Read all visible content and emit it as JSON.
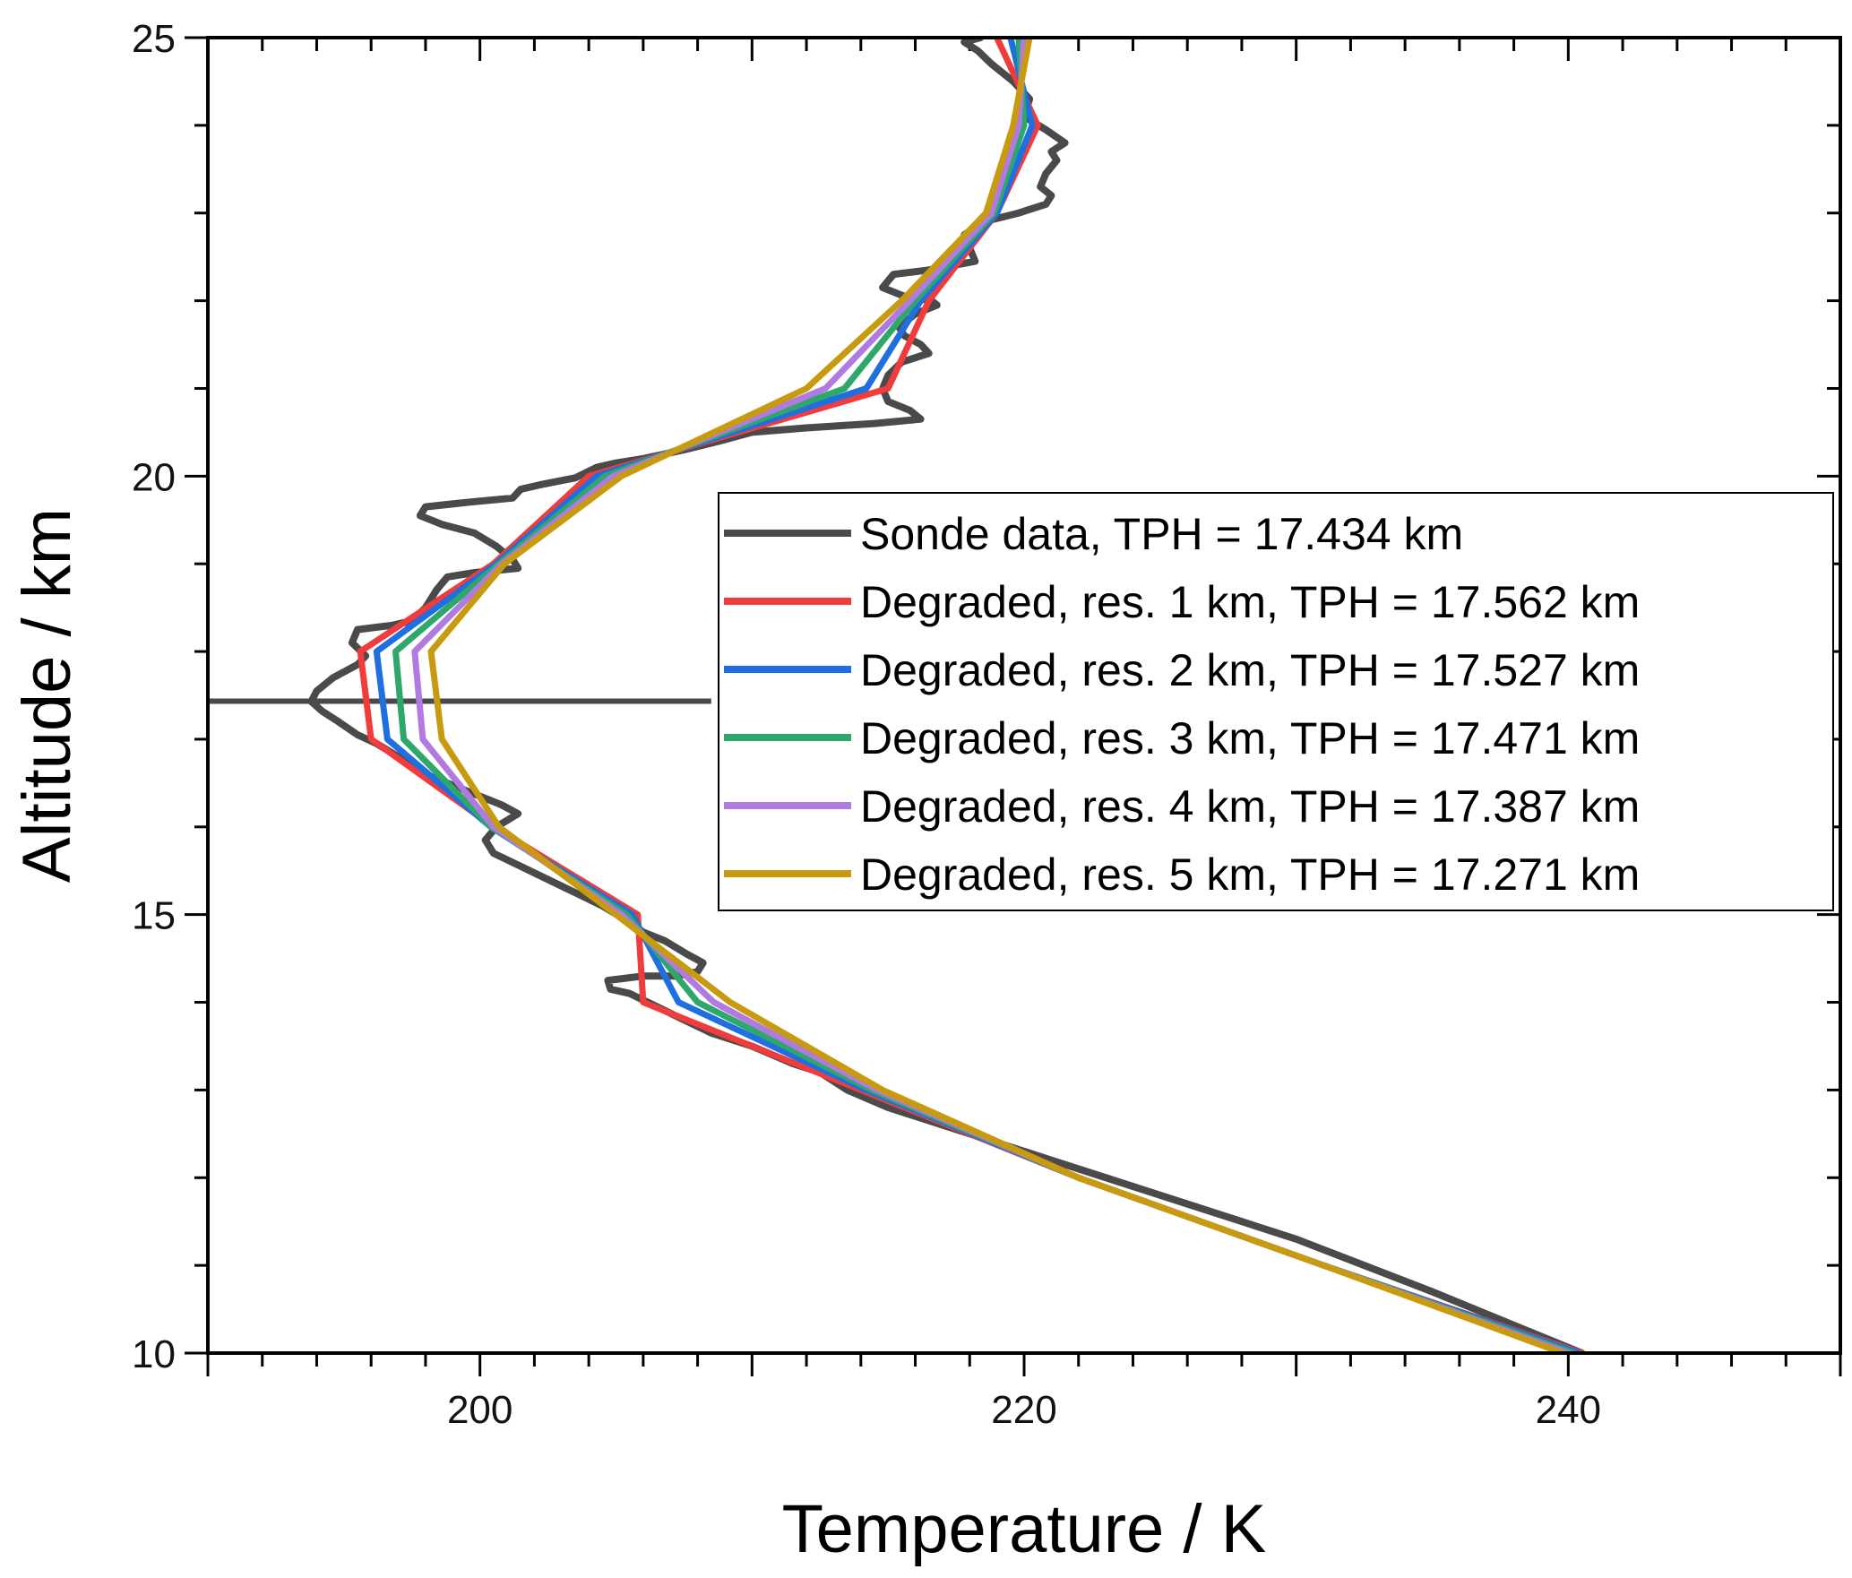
{
  "chart_data": {
    "type": "line",
    "xlabel": "Temperature / K",
    "ylabel": "Altitude / km",
    "xlim": [
      190,
      250
    ],
    "ylim": [
      10,
      25
    ],
    "xticks": [
      200,
      220,
      240
    ],
    "yticks": [
      10,
      15,
      20,
      25
    ],
    "grid": false,
    "legend_position": "right",
    "colors": {
      "sonde": "#4a4a4a",
      "res1": "#f03c3c",
      "res2": "#1f6fe0",
      "res3": "#2ea86a",
      "res4": "#b07ae0",
      "res5": "#c89a10"
    },
    "tropopause_line": {
      "y": 17.434,
      "x_range": [
        190,
        208.5
      ]
    },
    "series": [
      {
        "key": "sonde",
        "name": "Sonde data, TPH = 17.434 km",
        "color": "#4a4a4a",
        "points": [
          [
            240.5,
            10
          ],
          [
            235,
            10.7
          ],
          [
            230,
            11.3
          ],
          [
            225,
            11.8
          ],
          [
            221,
            12.2
          ],
          [
            218,
            12.5
          ],
          [
            215,
            12.8
          ],
          [
            213.5,
            13.0
          ],
          [
            212.5,
            13.2
          ],
          [
            211.5,
            13.3
          ],
          [
            210,
            13.5
          ],
          [
            208.5,
            13.65
          ],
          [
            207.5,
            13.8
          ],
          [
            206.5,
            13.95
          ],
          [
            205.5,
            14.1
          ],
          [
            204.8,
            14.15
          ],
          [
            204.7,
            14.25
          ],
          [
            206.0,
            14.3
          ],
          [
            207.2,
            14.3
          ],
          [
            208.0,
            14.35
          ],
          [
            208.2,
            14.45
          ],
          [
            207.6,
            14.55
          ],
          [
            206.8,
            14.7
          ],
          [
            206.0,
            14.8
          ],
          [
            205.3,
            14.95
          ],
          [
            204.5,
            15.1
          ],
          [
            203.5,
            15.25
          ],
          [
            202.5,
            15.4
          ],
          [
            201.5,
            15.55
          ],
          [
            200.5,
            15.7
          ],
          [
            200.2,
            15.85
          ],
          [
            200.6,
            16.0
          ],
          [
            201.4,
            16.15
          ],
          [
            200.8,
            16.25
          ],
          [
            199.2,
            16.45
          ],
          [
            198.0,
            16.6
          ],
          [
            197.0,
            16.8
          ],
          [
            196.2,
            16.95
          ],
          [
            195.5,
            17.05
          ],
          [
            194.8,
            17.2
          ],
          [
            194.2,
            17.32
          ],
          [
            193.8,
            17.43
          ],
          [
            194.0,
            17.55
          ],
          [
            194.6,
            17.7
          ],
          [
            195.5,
            17.85
          ],
          [
            195.8,
            17.95
          ],
          [
            195.3,
            18.1
          ],
          [
            195.5,
            18.25
          ],
          [
            196.8,
            18.3
          ],
          [
            197.5,
            18.35
          ],
          [
            198.0,
            18.5
          ],
          [
            198.4,
            18.7
          ],
          [
            198.8,
            18.85
          ],
          [
            199.8,
            18.9
          ],
          [
            201.4,
            18.95
          ],
          [
            201.2,
            19.05
          ],
          [
            200.6,
            19.2
          ],
          [
            199.8,
            19.35
          ],
          [
            198.6,
            19.45
          ],
          [
            197.8,
            19.55
          ],
          [
            198.0,
            19.65
          ],
          [
            199.5,
            19.7
          ],
          [
            201.2,
            19.75
          ],
          [
            201.5,
            19.85
          ],
          [
            202.2,
            19.9
          ],
          [
            203.5,
            19.98
          ],
          [
            204.3,
            20.1
          ],
          [
            205.0,
            20.15
          ],
          [
            206.0,
            20.2
          ],
          [
            207.5,
            20.3
          ],
          [
            208.8,
            20.4
          ],
          [
            210.0,
            20.5
          ],
          [
            212.0,
            20.55
          ],
          [
            214.5,
            20.6
          ],
          [
            216.2,
            20.65
          ],
          [
            215.8,
            20.75
          ],
          [
            215.0,
            20.85
          ],
          [
            214.8,
            21.0
          ],
          [
            215.0,
            21.15
          ],
          [
            215.5,
            21.3
          ],
          [
            216.5,
            21.4
          ],
          [
            216.2,
            21.5
          ],
          [
            215.6,
            21.6
          ],
          [
            215.4,
            21.7
          ],
          [
            216.0,
            21.85
          ],
          [
            216.8,
            21.95
          ],
          [
            216.6,
            22.0
          ],
          [
            215.6,
            22.05
          ],
          [
            214.8,
            22.15
          ],
          [
            215.2,
            22.3
          ],
          [
            216.5,
            22.35
          ],
          [
            218.2,
            22.45
          ],
          [
            218.0,
            22.6
          ],
          [
            217.8,
            22.75
          ],
          [
            218.5,
            22.9
          ],
          [
            219.8,
            23.0
          ],
          [
            220.8,
            23.1
          ],
          [
            221.0,
            23.2
          ],
          [
            220.6,
            23.3
          ],
          [
            220.8,
            23.45
          ],
          [
            221.2,
            23.6
          ],
          [
            221.0,
            23.7
          ],
          [
            221.5,
            23.8
          ],
          [
            220.8,
            23.95
          ],
          [
            220.0,
            24.1
          ],
          [
            220.2,
            24.3
          ],
          [
            219.6,
            24.5
          ],
          [
            218.8,
            24.7
          ],
          [
            218.3,
            24.85
          ],
          [
            217.8,
            24.95
          ],
          [
            218.4,
            25.0
          ]
        ]
      },
      {
        "key": "res1",
        "name": "Degraded, res. 1 km, TPH = 17.562 km",
        "color": "#f03c3c",
        "points": [
          [
            240.5,
            10
          ],
          [
            231,
            11
          ],
          [
            222,
            12
          ],
          [
            214,
            13
          ],
          [
            206,
            14
          ],
          [
            205.8,
            15
          ],
          [
            200.5,
            16
          ],
          [
            196,
            17
          ],
          [
            195.6,
            18
          ],
          [
            200.5,
            19
          ],
          [
            204,
            20
          ],
          [
            215,
            21
          ],
          [
            216.5,
            22
          ],
          [
            219,
            23
          ],
          [
            220.5,
            24
          ],
          [
            219,
            25
          ]
        ]
      },
      {
        "key": "res2",
        "name": "Degraded, res. 2 km, TPH = 17.527 km",
        "color": "#1f6fe0",
        "points": [
          [
            240.4,
            10
          ],
          [
            231,
            11
          ],
          [
            222,
            12
          ],
          [
            214.2,
            13
          ],
          [
            207.3,
            14
          ],
          [
            205.6,
            15
          ],
          [
            200.4,
            16
          ],
          [
            196.6,
            17
          ],
          [
            196.2,
            18
          ],
          [
            200.6,
            19
          ],
          [
            204.3,
            20
          ],
          [
            214.2,
            21
          ],
          [
            216.2,
            22
          ],
          [
            219,
            23
          ],
          [
            220.3,
            24
          ],
          [
            219.5,
            25
          ]
        ]
      },
      {
        "key": "res3",
        "name": "Degraded, res. 3 km, TPH = 17.471 km",
        "color": "#2ea86a",
        "points": [
          [
            240.2,
            10
          ],
          [
            231,
            11
          ],
          [
            222,
            12
          ],
          [
            214.4,
            13
          ],
          [
            208,
            14
          ],
          [
            205.4,
            15
          ],
          [
            200.4,
            16
          ],
          [
            197.2,
            17
          ],
          [
            196.9,
            18
          ],
          [
            200.7,
            19
          ],
          [
            204.6,
            20
          ],
          [
            213.4,
            21
          ],
          [
            216,
            22
          ],
          [
            218.9,
            23
          ],
          [
            220,
            24
          ],
          [
            219.8,
            25
          ]
        ]
      },
      {
        "key": "res4",
        "name": "Degraded, res. 4 km, TPH = 17.387 km",
        "color": "#b07ae0",
        "points": [
          [
            240,
            10
          ],
          [
            231,
            11
          ],
          [
            222,
            12
          ],
          [
            214.6,
            13
          ],
          [
            208.6,
            14
          ],
          [
            205.2,
            15
          ],
          [
            200.5,
            16
          ],
          [
            197.9,
            17
          ],
          [
            197.6,
            18
          ],
          [
            200.8,
            19
          ],
          [
            204.9,
            20
          ],
          [
            212.7,
            21
          ],
          [
            215.8,
            22
          ],
          [
            218.8,
            23
          ],
          [
            219.8,
            24
          ],
          [
            220,
            25
          ]
        ]
      },
      {
        "key": "res5",
        "name": "Degraded, res. 5 km, TPH = 17.271 km",
        "color": "#c89a10",
        "points": [
          [
            239.8,
            10
          ],
          [
            231,
            11
          ],
          [
            222,
            12
          ],
          [
            214.8,
            13
          ],
          [
            209.2,
            14
          ],
          [
            205,
            15
          ],
          [
            200.7,
            16
          ],
          [
            198.6,
            17
          ],
          [
            198.2,
            18
          ],
          [
            200.9,
            19
          ],
          [
            205.2,
            20
          ],
          [
            212,
            21
          ],
          [
            215.5,
            22
          ],
          [
            218.6,
            23
          ],
          [
            219.6,
            24
          ],
          [
            220.2,
            25
          ]
        ]
      }
    ]
  }
}
